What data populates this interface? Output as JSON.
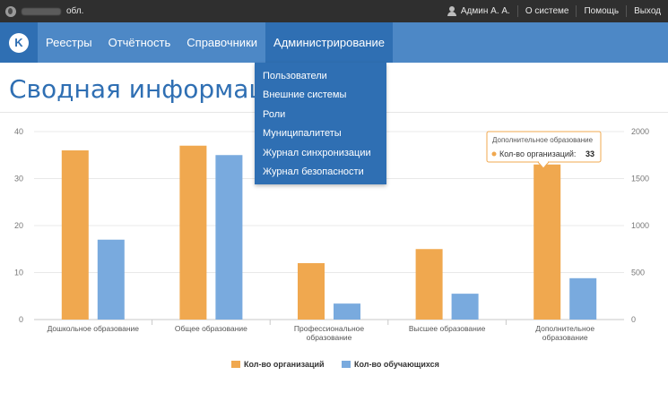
{
  "topbar": {
    "region_suffix": "обл.",
    "user_name": "Админ А. А.",
    "about_label": "О системе",
    "help_label": "Помощь",
    "logout_label": "Выход"
  },
  "logo": {
    "letter": "K"
  },
  "nav": {
    "items": [
      {
        "label": "Реестры"
      },
      {
        "label": "Отчётность"
      },
      {
        "label": "Справочники"
      },
      {
        "label": "Администрирование"
      }
    ],
    "active_index": 3
  },
  "dropdown": {
    "items": [
      {
        "label": "Пользователи"
      },
      {
        "label": "Внешние системы"
      },
      {
        "label": "Роли"
      },
      {
        "label": "Муниципалитеты"
      },
      {
        "label": "Журнал синхронизации"
      },
      {
        "label": "Журнал безопасности"
      }
    ]
  },
  "page": {
    "title": "Сводная информация"
  },
  "colors": {
    "accent": "#4d88c6",
    "accent_dark": "#2f6fb3",
    "topbar": "#2f2f2f",
    "orgs": "#f0a84f",
    "students": "#79aade"
  },
  "chart_data": {
    "type": "bar",
    "categories": [
      [
        "Дошкольное образование"
      ],
      [
        "Общее образование"
      ],
      [
        "Профессиональное",
        "образование"
      ],
      [
        "Высшее образование"
      ],
      [
        "Дополнительное",
        "образование"
      ]
    ],
    "series": [
      {
        "name": "Кол-во организаций",
        "axis": "left",
        "values": [
          36,
          37,
          12,
          15,
          33
        ]
      },
      {
        "name": "Кол-во обучающихся",
        "axis": "right",
        "values": [
          850,
          1750,
          170,
          275,
          440
        ]
      }
    ],
    "left_axis": {
      "min": 0,
      "max": 40,
      "ticks": [
        "0",
        "10",
        "20",
        "30",
        "40"
      ]
    },
    "right_axis": {
      "min": 0,
      "max": 2000,
      "ticks": [
        "0",
        "500",
        "1000",
        "1500",
        "2000"
      ]
    },
    "grid": true,
    "legend": "bottom-center",
    "tooltip": {
      "category": "Дополнительное образование",
      "series_label": "Кол-во организаций:",
      "value": "33"
    }
  }
}
